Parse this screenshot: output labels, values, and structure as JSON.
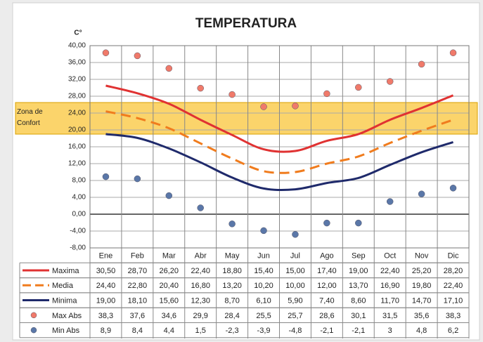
{
  "chart_data": {
    "type": "line",
    "title": "TEMPERATURA",
    "y_label": "C°",
    "categories": [
      "Ene",
      "Feb",
      "Mar",
      "Abr",
      "May",
      "Jun",
      "Jul",
      "Ago",
      "Sep",
      "Oct",
      "Nov",
      "Dic"
    ],
    "ylim": [
      -8,
      40
    ],
    "yticks": [
      {
        "value": 40,
        "label": "40,00"
      },
      {
        "value": 36,
        "label": "36,00"
      },
      {
        "value": 32,
        "label": "32,00"
      },
      {
        "value": 28,
        "label": "28,00"
      },
      {
        "value": 24,
        "label": "24,00"
      },
      {
        "value": 20,
        "label": "20,00"
      },
      {
        "value": 16,
        "label": "16,00"
      },
      {
        "value": 12,
        "label": "12,00"
      },
      {
        "value": 8,
        "label": "8,00"
      },
      {
        "value": 4,
        "label": "4,00"
      },
      {
        "value": 0,
        "label": "0,00"
      },
      {
        "value": -4,
        "label": "-4,00"
      },
      {
        "value": -8,
        "label": "-8,00"
      }
    ],
    "grid": true,
    "comfort_zone": {
      "text": "Zona de Confort",
      "range": [
        19,
        26.5
      ],
      "color": "#f9c53a"
    },
    "series": [
      {
        "name": "Maxima",
        "color": "#e03232",
        "style": "solid",
        "values": [
          30.5,
          28.7,
          26.2,
          22.4,
          18.8,
          15.4,
          15.0,
          17.4,
          19.0,
          22.4,
          25.2,
          28.2
        ],
        "value_labels": [
          "30,50",
          "28,70",
          "26,20",
          "22,40",
          "18,80",
          "15,40",
          "15,00",
          "17,40",
          "19,00",
          "22,40",
          "25,20",
          "28,20"
        ]
      },
      {
        "name": "Media",
        "color": "#f07c1e",
        "style": "dashed",
        "values": [
          24.4,
          22.8,
          20.4,
          16.8,
          13.2,
          10.2,
          10.0,
          12.0,
          13.7,
          16.9,
          19.8,
          22.4
        ],
        "value_labels": [
          "24,40",
          "22,80",
          "20,40",
          "16,80",
          "13,20",
          "10,20",
          "10,00",
          "12,00",
          "13,70",
          "16,90",
          "19,80",
          "22,40"
        ]
      },
      {
        "name": "Minima",
        "color": "#1f2a6b",
        "style": "solid",
        "values": [
          19.0,
          18.1,
          15.6,
          12.3,
          8.7,
          6.1,
          5.9,
          7.4,
          8.6,
          11.7,
          14.7,
          17.1
        ],
        "value_labels": [
          "19,00",
          "18,10",
          "15,60",
          "12,30",
          "8,70",
          "6,10",
          "5,90",
          "7,40",
          "8,60",
          "11,70",
          "14,70",
          "17,10"
        ]
      },
      {
        "name": "Max Abs",
        "color": "#f07a6a",
        "style": "markers",
        "values": [
          38.3,
          37.6,
          34.6,
          29.9,
          28.4,
          25.5,
          25.7,
          28.6,
          30.1,
          31.5,
          35.6,
          38.3
        ],
        "value_labels": [
          "38,3",
          "37,6",
          "34,6",
          "29,9",
          "28,4",
          "25,5",
          "25,7",
          "28,6",
          "30,1",
          "31,5",
          "35,6",
          "38,3"
        ]
      },
      {
        "name": "Min Abs",
        "color": "#5a77a8",
        "style": "markers",
        "values": [
          8.9,
          8.4,
          4.4,
          1.5,
          -2.3,
          -3.9,
          -4.8,
          -2.1,
          -2.1,
          3,
          4.8,
          6.2
        ],
        "value_labels": [
          "8,9",
          "8,4",
          "4,4",
          "1,5",
          "-2,3",
          "-3,9",
          "-4,8",
          "-2,1",
          "-2,1",
          "3",
          "4,8",
          "6,2"
        ]
      }
    ]
  }
}
